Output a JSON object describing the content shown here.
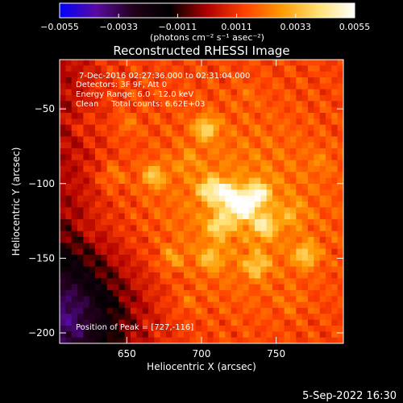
{
  "chart_data": {
    "type": "heatmap",
    "title": "Reconstructed RHESSI Image",
    "xlabel": "Heliocentric X (arcsec)",
    "ylabel": "Heliocentric Y (arcsec)",
    "xlim": [
      605,
      795
    ],
    "ylim": [
      -207,
      -17
    ],
    "x_ticks": [
      650,
      700,
      750
    ],
    "y_ticks": [
      -50,
      -100,
      -150,
      -200
    ],
    "colorbar": {
      "range": [
        -0.0055,
        0.0055
      ],
      "ticks": [
        "−0.0055",
        "−0.0033",
        "−0.0011",
        "0.0011",
        "0.0033",
        "0.0055"
      ],
      "tick_values": [
        -0.0055,
        -0.0033,
        -0.0011,
        0.0011,
        0.0033,
        0.0055
      ],
      "unit_label": "(photons cm⁻² s⁻¹ asec⁻²)",
      "colors": [
        "#0000ff",
        "#5a0aa0",
        "#200018",
        "#000000",
        "#b00000",
        "#ff4000",
        "#ff9800",
        "#ffe070",
        "#ffffff"
      ]
    },
    "annotations": {
      "time_range": "7-Dec-2016 02:27:36.000 to 02:31:04.000",
      "detectors": "Detectors: 3F 9F, Att 0",
      "energy": "Energy Range: 6.0 - 12.0 keV",
      "clean": "Clean     Total counts: 6.62E+03",
      "peak": "Position of Peak = [727,-116]"
    },
    "peak_position": [
      727,
      -116
    ],
    "bright_sources": [
      {
        "x": 727,
        "y": -116,
        "value": 0.0055
      },
      {
        "x": 718,
        "y": -108,
        "value": 0.0046
      },
      {
        "x": 738,
        "y": -107,
        "value": 0.0042
      },
      {
        "x": 706,
        "y": -104,
        "value": 0.0038
      },
      {
        "x": 742,
        "y": -128,
        "value": 0.0036
      },
      {
        "x": 712,
        "y": -128,
        "value": 0.0034
      },
      {
        "x": 703,
        "y": -63,
        "value": 0.0036
      },
      {
        "x": 668,
        "y": -95,
        "value": 0.0032
      },
      {
        "x": 770,
        "y": -148,
        "value": 0.0033
      },
      {
        "x": 737,
        "y": -155,
        "value": 0.0031
      },
      {
        "x": 706,
        "y": -150,
        "value": 0.0028
      },
      {
        "x": 680,
        "y": -150,
        "value": 0.0024
      },
      {
        "x": 640,
        "y": -95,
        "value": 0.0022
      },
      {
        "x": 650,
        "y": -60,
        "value": 0.002
      },
      {
        "x": 760,
        "y": -120,
        "value": 0.0022
      },
      {
        "x": 780,
        "y": -85,
        "value": 0.0018
      },
      {
        "x": 620,
        "y": -60,
        "value": 0.0018
      },
      {
        "x": 730,
        "y": -40,
        "value": 0.0016
      },
      {
        "x": 690,
        "y": -180,
        "value": 0.0018
      },
      {
        "x": 760,
        "y": -180,
        "value": 0.0017
      },
      {
        "x": 625,
        "y": -130,
        "value": 0.0016
      },
      {
        "x": 690,
        "y": -85,
        "value": 0.002
      }
    ],
    "negative_region": {
      "x": 612,
      "y": -190,
      "value": -0.0025
    }
  },
  "footer": {
    "date_stamp": "5-Sep-2022 16:30"
  }
}
